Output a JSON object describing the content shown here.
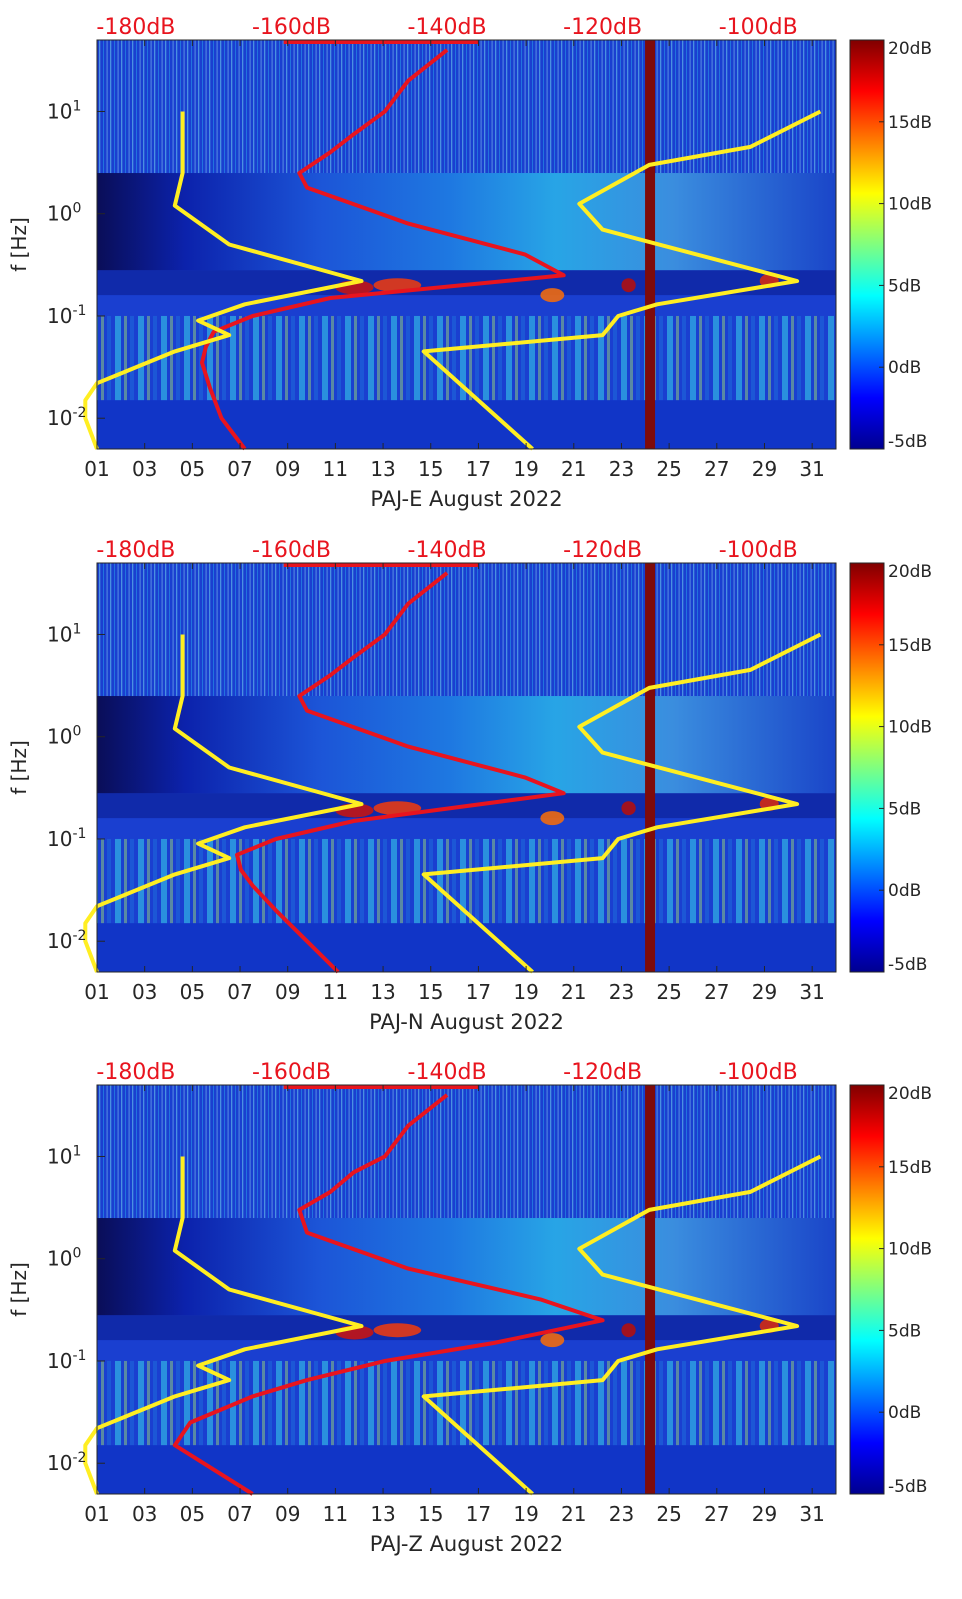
{
  "chart_data": [
    {
      "type": "heatmap",
      "title": "",
      "xlabel": "PAJ-E August 2022",
      "ylabel": "f [Hz]",
      "xlim": [
        1,
        32
      ],
      "ylim": [
        0.005,
        50
      ],
      "yscale": "log",
      "x_ticks": [
        "01",
        "03",
        "05",
        "07",
        "09",
        "11",
        "13",
        "15",
        "17",
        "19",
        "21",
        "23",
        "25",
        "27",
        "29",
        "31"
      ],
      "y_ticks": [
        "10^-2",
        "10^-1",
        "10^0",
        "10^1"
      ],
      "top_axis": {
        "labels": [
          "-180dB",
          "-160dB",
          "-140dB",
          "-120dB",
          "-100dB"
        ],
        "range_dB": [
          -185,
          -90
        ]
      },
      "colorbar": {
        "labels": [
          "20dB",
          "15dB",
          "10dB",
          "5dB",
          "0dB",
          "-5dB"
        ],
        "range_dB": [
          -5,
          20
        ],
        "colormap": "jet"
      },
      "dark_band_day": 24.2,
      "series": [
        {
          "name": "red PSD curve",
          "color": "#e8141e",
          "points": [
            [
              -166,
              0.005
            ],
            [
              -169,
              0.01
            ],
            [
              -170.5,
              0.02
            ],
            [
              -171.5,
              0.035
            ],
            [
              -171,
              0.05
            ],
            [
              -170,
              0.07
            ],
            [
              -165,
              0.1
            ],
            [
              -155,
              0.15
            ],
            [
              -125,
              0.25
            ],
            [
              -130,
              0.4
            ],
            [
              -145,
              0.8
            ],
            [
              -158,
              1.8
            ],
            [
              -159,
              2.5
            ],
            [
              -155,
              4
            ],
            [
              -152,
              6
            ],
            [
              -148,
              10
            ],
            [
              -145,
              20
            ],
            [
              -140,
              40
            ]
          ]
        },
        {
          "name": "yellow low noise model",
          "color": "#ffee22",
          "points": [
            [
              -185,
              0.005
            ],
            [
              -186.5,
              0.01
            ],
            [
              -186.5,
              0.015
            ],
            [
              -185,
              0.022
            ],
            [
              -175,
              0.045
            ],
            [
              -168,
              0.065
            ],
            [
              -172,
              0.09
            ],
            [
              -166,
              0.13
            ],
            [
              -151,
              0.22
            ],
            [
              -168,
              0.5
            ],
            [
              -175,
              1.2
            ],
            [
              -174,
              2.5
            ],
            [
              -174,
              10
            ]
          ]
        },
        {
          "name": "yellow high noise model",
          "color": "#ffee22",
          "points": [
            [
              -129,
              0.005
            ],
            [
              -143,
              0.045
            ],
            [
              -120,
              0.065
            ],
            [
              -118,
              0.1
            ],
            [
              -113,
              0.13
            ],
            [
              -95,
              0.22
            ],
            [
              -120,
              0.7
            ],
            [
              -123,
              1.25
            ],
            [
              -114,
              3
            ],
            [
              -101,
              4.5
            ],
            [
              -92,
              10
            ]
          ]
        }
      ]
    },
    {
      "type": "heatmap",
      "title": "",
      "xlabel": "PAJ-N August 2022",
      "ylabel": "f [Hz]",
      "xlim": [
        1,
        32
      ],
      "ylim": [
        0.005,
        50
      ],
      "yscale": "log",
      "x_ticks": [
        "01",
        "03",
        "05",
        "07",
        "09",
        "11",
        "13",
        "15",
        "17",
        "19",
        "21",
        "23",
        "25",
        "27",
        "29",
        "31"
      ],
      "y_ticks": [
        "10^-2",
        "10^-1",
        "10^0",
        "10^1"
      ],
      "top_axis": {
        "labels": [
          "-180dB",
          "-160dB",
          "-140dB",
          "-120dB",
          "-100dB"
        ],
        "range_dB": [
          -185,
          -90
        ]
      },
      "colorbar": {
        "labels": [
          "20dB",
          "15dB",
          "10dB",
          "5dB",
          "0dB",
          "-5dB"
        ],
        "range_dB": [
          -5,
          20
        ],
        "colormap": "jet"
      },
      "dark_band_day": 24.2,
      "series": [
        {
          "name": "red PSD curve",
          "color": "#e8141e",
          "points": [
            [
              -154,
              0.005
            ],
            [
              -158,
              0.01
            ],
            [
              -162,
              0.02
            ],
            [
              -165,
              0.035
            ],
            [
              -166.5,
              0.05
            ],
            [
              -167,
              0.07
            ],
            [
              -162,
              0.1
            ],
            [
              -152,
              0.15
            ],
            [
              -125,
              0.28
            ],
            [
              -130,
              0.4
            ],
            [
              -145,
              0.8
            ],
            [
              -158,
              1.8
            ],
            [
              -159,
              2.5
            ],
            [
              -155,
              4
            ],
            [
              -152,
              6
            ],
            [
              -148,
              10
            ],
            [
              -145,
              20
            ],
            [
              -140,
              40
            ]
          ]
        },
        {
          "name": "yellow low noise model",
          "color": "#ffee22",
          "points": [
            [
              -185,
              0.005
            ],
            [
              -186.5,
              0.01
            ],
            [
              -186.5,
              0.015
            ],
            [
              -185,
              0.022
            ],
            [
              -175,
              0.045
            ],
            [
              -168,
              0.065
            ],
            [
              -172,
              0.09
            ],
            [
              -166,
              0.13
            ],
            [
              -151,
              0.22
            ],
            [
              -168,
              0.5
            ],
            [
              -175,
              1.2
            ],
            [
              -174,
              2.5
            ],
            [
              -174,
              10
            ]
          ]
        },
        {
          "name": "yellow high noise model",
          "color": "#ffee22",
          "points": [
            [
              -129,
              0.005
            ],
            [
              -143,
              0.045
            ],
            [
              -120,
              0.065
            ],
            [
              -118,
              0.1
            ],
            [
              -113,
              0.13
            ],
            [
              -95,
              0.22
            ],
            [
              -120,
              0.7
            ],
            [
              -123,
              1.25
            ],
            [
              -114,
              3
            ],
            [
              -101,
              4.5
            ],
            [
              -92,
              10
            ]
          ]
        }
      ]
    },
    {
      "type": "heatmap",
      "title": "",
      "xlabel": "PAJ-Z August 2022",
      "ylabel": "f [Hz]",
      "xlim": [
        1,
        32
      ],
      "ylim": [
        0.005,
        50
      ],
      "yscale": "log",
      "x_ticks": [
        "01",
        "03",
        "05",
        "07",
        "09",
        "11",
        "13",
        "15",
        "17",
        "19",
        "21",
        "23",
        "25",
        "27",
        "29",
        "31"
      ],
      "y_ticks": [
        "10^-2",
        "10^-1",
        "10^0",
        "10^1"
      ],
      "top_axis": {
        "labels": [
          "-180dB",
          "-160dB",
          "-140dB",
          "-120dB",
          "-100dB"
        ],
        "range_dB": [
          -185,
          -90
        ]
      },
      "colorbar": {
        "labels": [
          "20dB",
          "15dB",
          "10dB",
          "5dB",
          "0dB",
          "-5dB"
        ],
        "range_dB": [
          -5,
          20
        ],
        "colormap": "jet"
      },
      "dark_band_day": 24.2,
      "series": [
        {
          "name": "red PSD curve",
          "color": "#e8141e",
          "points": [
            [
              -165,
              0.005
            ],
            [
              -175,
              0.015
            ],
            [
              -173,
              0.025
            ],
            [
              -165,
              0.045
            ],
            [
              -158,
              0.065
            ],
            [
              -148,
              0.1
            ],
            [
              -134,
              0.15
            ],
            [
              -120,
              0.25
            ],
            [
              -128,
              0.4
            ],
            [
              -145,
              0.8
            ],
            [
              -158,
              1.8
            ],
            [
              -159,
              3
            ],
            [
              -155,
              4.5
            ],
            [
              -152,
              7
            ],
            [
              -148,
              10
            ],
            [
              -145,
              20
            ],
            [
              -140,
              40
            ]
          ]
        },
        {
          "name": "yellow low noise model",
          "color": "#ffee22",
          "points": [
            [
              -185,
              0.005
            ],
            [
              -186.5,
              0.01
            ],
            [
              -186.5,
              0.015
            ],
            [
              -185,
              0.022
            ],
            [
              -175,
              0.045
            ],
            [
              -168,
              0.065
            ],
            [
              -172,
              0.09
            ],
            [
              -166,
              0.13
            ],
            [
              -151,
              0.22
            ],
            [
              -168,
              0.5
            ],
            [
              -175,
              1.2
            ],
            [
              -174,
              2.5
            ],
            [
              -174,
              10
            ]
          ]
        },
        {
          "name": "yellow high noise model",
          "color": "#ffee22",
          "points": [
            [
              -129,
              0.005
            ],
            [
              -143,
              0.045
            ],
            [
              -120,
              0.065
            ],
            [
              -118,
              0.1
            ],
            [
              -113,
              0.13
            ],
            [
              -95,
              0.22
            ],
            [
              -120,
              0.7
            ],
            [
              -123,
              1.25
            ],
            [
              -114,
              3
            ],
            [
              -101,
              4.5
            ],
            [
              -92,
              10
            ]
          ]
        }
      ]
    }
  ]
}
